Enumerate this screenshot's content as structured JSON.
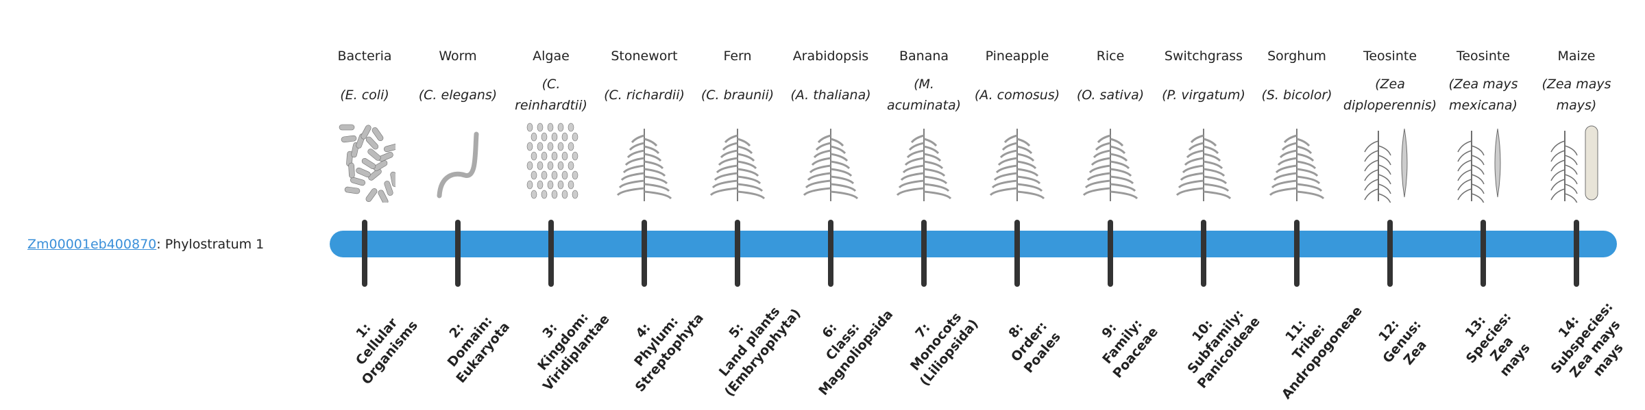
{
  "gene": {
    "id": "Zm00001eb400870",
    "suffix": ": Phylostratum 1"
  },
  "colors": {
    "bar": "#3898db",
    "link": "#3a8fd9",
    "tick": "#333333"
  },
  "strata": [
    {
      "common": "Bacteria",
      "scientific": "(E. coli)",
      "icon": "bacteria-icon",
      "label": "1:\nCellular\nOrganisms"
    },
    {
      "common": "Worm",
      "scientific": "(C. elegans)",
      "icon": "worm-icon",
      "label": "2:\nDomain:\nEukaryota"
    },
    {
      "common": "Algae",
      "scientific": "(C. reinhardtii)",
      "icon": "algae-icon",
      "label": "3:\nKingdom:\nViridiplantae"
    },
    {
      "common": "Stonewort",
      "scientific": "(C. richardii)",
      "icon": "stonewort-icon",
      "label": "4:\nPhylum:\nStreptophyta"
    },
    {
      "common": "Fern",
      "scientific": "(C. braunii)",
      "icon": "fern-icon",
      "label": "5:\nLand plants\n(Embryophyta)"
    },
    {
      "common": "Arabidopsis",
      "scientific": "(A. thaliana)",
      "icon": "arabidopsis-icon",
      "label": "6:\nClass:\nMagnoliopsida"
    },
    {
      "common": "Banana",
      "scientific": "(M. acuminata)",
      "icon": "banana-icon",
      "label": "7:\nMonocots\n(Liliopsida)"
    },
    {
      "common": "Pineapple",
      "scientific": "(A. comosus)",
      "icon": "pineapple-icon",
      "label": "8:\nOrder:\nPoales"
    },
    {
      "common": "Rice",
      "scientific": "(O. sativa)",
      "icon": "rice-icon",
      "label": "9:\nFamily:\nPoaceae"
    },
    {
      "common": "Switchgrass",
      "scientific": "(P. virgatum)",
      "icon": "switchgrass-icon",
      "label": "10:\nSubfamily:\nPanicoideae"
    },
    {
      "common": "Sorghum",
      "scientific": "(S. bicolor)",
      "icon": "sorghum-icon",
      "label": "11:\nTribe:\nAndropogoneae"
    },
    {
      "common": "Teosinte",
      "scientific": "(Zea diploperennis)",
      "icon": "teosinte-icon",
      "label": "12:\nGenus:\nZea"
    },
    {
      "common": "Teosinte",
      "scientific": "(Zea mays mexicana)",
      "icon": "teosinte-icon",
      "label": "13:\nSpecies:\nZea\nmays"
    },
    {
      "common": "Maize",
      "scientific": "(Zea mays mays)",
      "icon": "maize-icon",
      "label": "14:\nSubspecies:\nZea mays\nmays"
    }
  ]
}
